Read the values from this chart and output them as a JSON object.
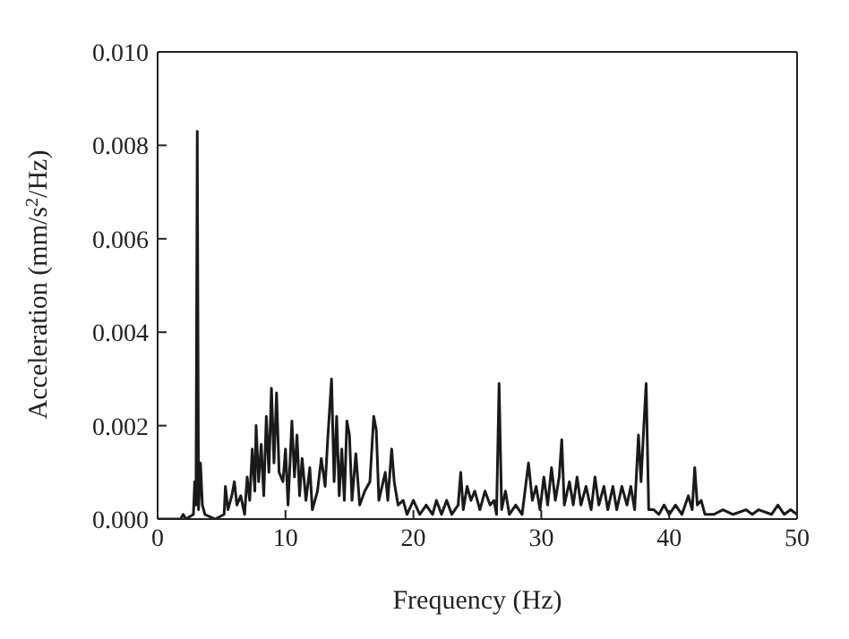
{
  "chart_data": {
    "type": "line",
    "xlabel": "Frequency (Hz)",
    "ylabel": "Acceleration (mm/s$^{2}$/Hz)",
    "xlim": [
      0,
      50
    ],
    "xticks": [
      0,
      10,
      20,
      30,
      40,
      50
    ],
    "ylim": [
      0,
      0.01
    ],
    "yticks": [
      {
        "value": 0,
        "label": "0.000"
      },
      {
        "value": 0.002,
        "label": "0.002"
      },
      {
        "value": 0.004,
        "label": "0.004"
      },
      {
        "value": 0.006,
        "label": "0.006"
      },
      {
        "value": 0.008,
        "label": "0.008"
      },
      {
        "value": 0.01,
        "label": "0.010"
      }
    ],
    "grid": false,
    "legend": false,
    "marker": "none",
    "line_style": "solid",
    "series": [
      {
        "color": "#1a1a1a",
        "x": [
          0,
          1.8,
          2,
          2.2,
          2.8,
          2.9,
          3.0,
          3.1,
          3.2,
          3.35,
          3.5,
          3.7,
          4.5,
          5.2,
          5.3,
          5.5,
          5.8,
          6.0,
          6.2,
          6.5,
          6.8,
          7.0,
          7.2,
          7.4,
          7.6,
          7.7,
          7.9,
          8.1,
          8.3,
          8.5,
          8.7,
          8.9,
          9.1,
          9.3,
          9.5,
          9.8,
          10.0,
          10.2,
          10.5,
          10.7,
          10.9,
          11.1,
          11.3,
          11.6,
          11.9,
          12.1,
          12.5,
          12.8,
          13.1,
          13.3,
          13.6,
          13.8,
          14.0,
          14.2,
          14.4,
          14.6,
          14.8,
          15.0,
          15.2,
          15.5,
          15.8,
          16.2,
          16.6,
          16.9,
          17.1,
          17.3,
          17.8,
          18.0,
          18.3,
          18.5,
          18.8,
          19.2,
          19.5,
          20,
          20.5,
          21,
          21.5,
          21.8,
          22.2,
          22.6,
          23,
          23.5,
          23.7,
          23.9,
          24.2,
          24.5,
          24.8,
          25.2,
          25.6,
          26,
          26.3,
          26.5,
          26.7,
          26.9,
          27.2,
          27.5,
          28,
          28.5,
          29,
          29.3,
          29.6,
          29.9,
          30.2,
          30.5,
          30.8,
          31.1,
          31.4,
          31.6,
          31.8,
          32.2,
          32.5,
          32.8,
          33.1,
          33.5,
          33.9,
          34.2,
          34.5,
          34.9,
          35.2,
          35.6,
          35.9,
          36.3,
          36.7,
          37.0,
          37.3,
          37.6,
          37.8,
          38.0,
          38.2,
          38.4,
          38.8,
          39.2,
          39.6,
          40,
          40.5,
          41,
          41.5,
          41.8,
          42.0,
          42.2,
          42.5,
          42.8,
          43.5,
          44.2,
          45,
          46,
          46.5,
          47,
          48,
          48.5,
          49,
          49.5,
          50
        ],
        "values": [
          0,
          0,
          0.0001,
          0,
          0.0001,
          0.0008,
          0.0003,
          0.0083,
          0.0002,
          0.0012,
          0.0003,
          0.0001,
          0,
          0.0001,
          0.0007,
          0.0002,
          0.0005,
          0.0008,
          0.0003,
          0.0005,
          0.0001,
          0.0009,
          0.0004,
          0.0015,
          0.0006,
          0.002,
          0.0008,
          0.0016,
          0.0005,
          0.0022,
          0.001,
          0.0028,
          0.0012,
          0.0027,
          0.001,
          0.0008,
          0.0015,
          0.0003,
          0.0021,
          0.0009,
          0.0018,
          0.0005,
          0.0013,
          0.0004,
          0.0011,
          0.0002,
          0.0006,
          0.0013,
          0.0007,
          0.0017,
          0.003,
          0.0008,
          0.0022,
          0.0005,
          0.0015,
          0.0004,
          0.0021,
          0.0018,
          0.0004,
          0.0014,
          0.0003,
          0.0006,
          0.0008,
          0.0022,
          0.0019,
          0.0004,
          0.001,
          0.0004,
          0.0015,
          0.0008,
          0.0003,
          0.0004,
          0.0001,
          0.0004,
          0.0001,
          0.0003,
          0.0001,
          0.0004,
          0.0001,
          0.0004,
          0.0001,
          0.0003,
          0.001,
          0.0002,
          0.0007,
          0.0004,
          0.0006,
          0.0002,
          0.0006,
          0.0003,
          0.0004,
          0.0001,
          0.0029,
          0.0002,
          0.0006,
          0.0001,
          0.0003,
          0.0001,
          0.0012,
          0.0004,
          0.0007,
          0.0002,
          0.0009,
          0.0003,
          0.0011,
          0.0004,
          0.0009,
          0.0017,
          0.0003,
          0.0008,
          0.0003,
          0.0009,
          0.0003,
          0.0007,
          0.0002,
          0.0009,
          0.0003,
          0.0007,
          0.0002,
          0.0007,
          0.0002,
          0.0007,
          0.0003,
          0.0007,
          0.0002,
          0.0018,
          0.0008,
          0.0019,
          0.0029,
          0.0002,
          0.0002,
          0.0001,
          0.0003,
          0.0001,
          0.0003,
          0.0001,
          0.0005,
          0.0002,
          0.0011,
          0.0003,
          0.0004,
          0.0001,
          0.0001,
          0.0002,
          0.0001,
          0.0002,
          0.0001,
          0.0002,
          0.0001,
          0.0003,
          0.0001,
          0.0002,
          0.0001
        ]
      }
    ]
  }
}
